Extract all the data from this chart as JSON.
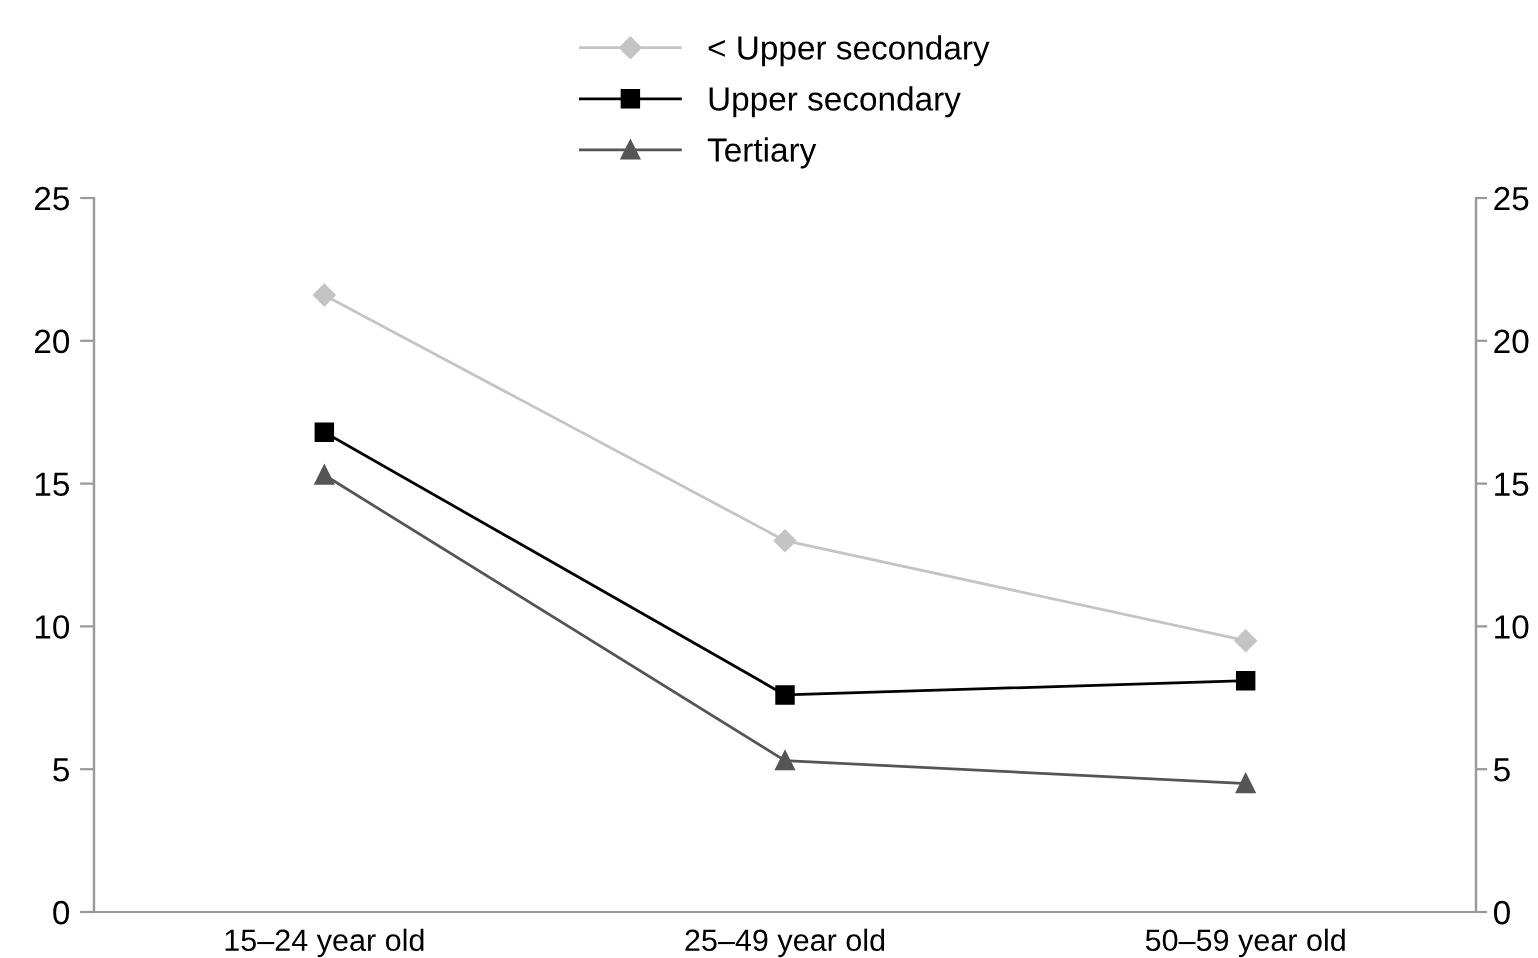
{
  "chart_data": {
    "type": "line",
    "categories": [
      "15–24 year old",
      "25–49 year old",
      "50–59 year old"
    ],
    "series": [
      {
        "name": "< Upper secondary",
        "color": "#c4c4c4",
        "marker": "diamond",
        "values": [
          21.6,
          13.0,
          9.5
        ]
      },
      {
        "name": "Upper secondary",
        "color": "#000000",
        "marker": "square",
        "values": [
          16.8,
          7.6,
          8.1
        ]
      },
      {
        "name": "Tertiary",
        "color": "#555555",
        "marker": "triangle",
        "values": [
          15.3,
          5.3,
          4.5
        ]
      }
    ],
    "ylim": [
      0,
      25
    ],
    "yticks": [
      0,
      5,
      10,
      15,
      20,
      25
    ],
    "y2lim": [
      0,
      25
    ],
    "y2ticks": [
      0,
      5,
      10,
      15,
      20,
      25
    ],
    "grid": false,
    "legend": "top",
    "line_style": "solid"
  }
}
